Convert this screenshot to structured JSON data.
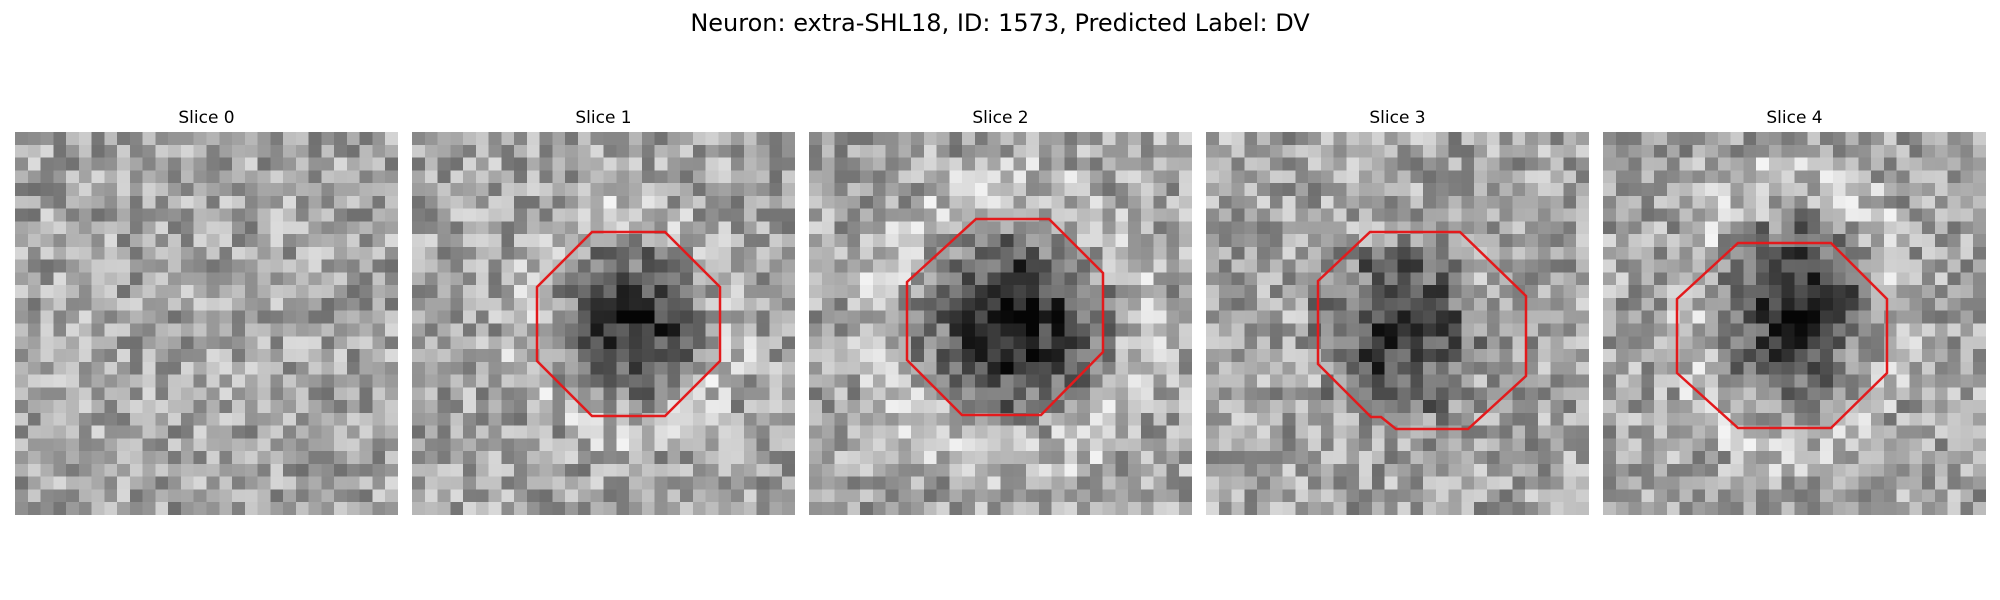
{
  "figure": {
    "title": "Neuron: extra-SHL18, ID: 1573, Predicted Label: DV"
  },
  "colors": {
    "contour": "#e31a1c"
  },
  "slices": [
    {
      "title": "Slice 0",
      "has_contour": false
    },
    {
      "title": "Slice 1",
      "has_contour": true
    },
    {
      "title": "Slice 2",
      "has_contour": true
    },
    {
      "title": "Slice 3",
      "has_contour": true
    },
    {
      "title": "Slice 4",
      "has_contour": true
    }
  ]
}
